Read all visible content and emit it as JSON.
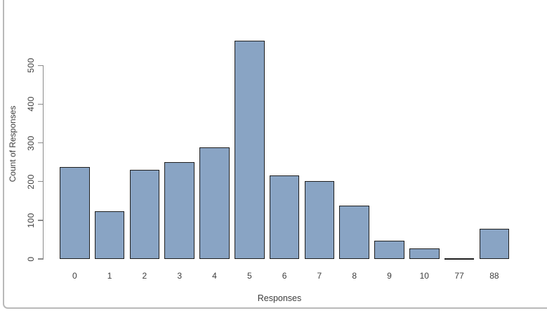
{
  "window": {
    "background": "#ffffff",
    "frame_color": "#b9b9b9"
  },
  "chart_data": {
    "type": "bar",
    "title": "",
    "xlabel": "Responses",
    "ylabel": "Count of Responses",
    "categories": [
      "0",
      "1",
      "2",
      "3",
      "4",
      "5",
      "6",
      "7",
      "8",
      "9",
      "10",
      "77",
      "88"
    ],
    "values": [
      237,
      124,
      230,
      250,
      288,
      564,
      216,
      201,
      137,
      47,
      27,
      2,
      78
    ],
    "yticks": [
      0,
      100,
      200,
      300,
      400,
      500
    ],
    "ylim": [
      0,
      580
    ],
    "grid": false,
    "legend_position": "none",
    "colors": {
      "bar_fill": "#89a4c4",
      "bar_border": "#1f1f1f",
      "axis": "#8a8a8a",
      "text": "#3d3d3d"
    }
  }
}
